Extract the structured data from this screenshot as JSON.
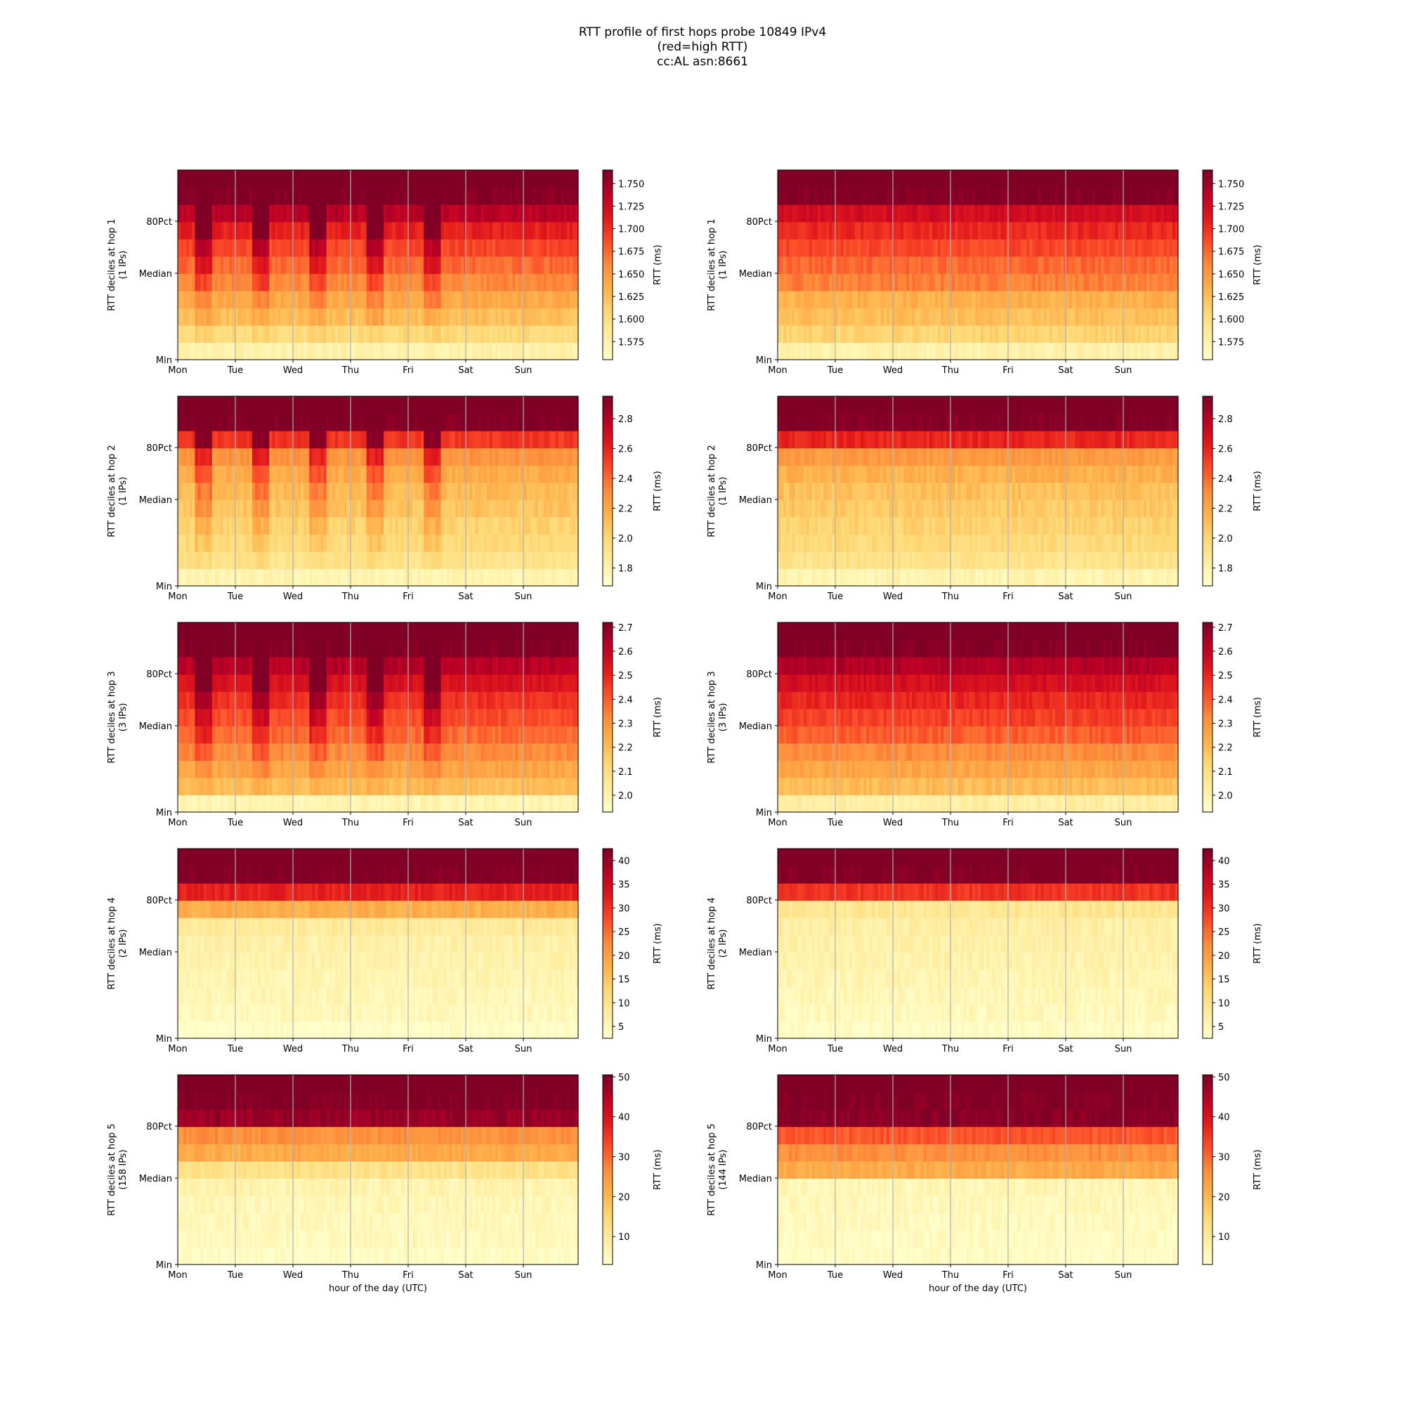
{
  "title_lines": [
    "RTT profile of first hops probe 10849 IPv4",
    "(red=high RTT)",
    "cc:AL asn:8661"
  ],
  "colorscale": {
    "name": "YlOrRd",
    "stops": [
      "#ffffcc",
      "#ffeda0",
      "#fed976",
      "#feb24c",
      "#fd8d3c",
      "#fc4e2a",
      "#e31a1c",
      "#bd0026",
      "#800026"
    ]
  },
  "chart_data": [
    {
      "type": "heatmap",
      "position": "row 1, left",
      "ylabel": [
        "RTT deciles at hop 1",
        "(1 IPs)"
      ],
      "xlabel": "",
      "x_ticks": [
        "Mon",
        "Tue",
        "Wed",
        "Thu",
        "Fri",
        "Sat",
        "Sun"
      ],
      "y_ticks": [
        "Min",
        "Median",
        "80Pct"
      ],
      "colorbar_label": "RTT (ms)",
      "colorbar_range": [
        1.555,
        1.765
      ],
      "colorbar_ticks": [
        "1.575",
        "1.600",
        "1.625",
        "1.650",
        "1.675",
        "1.700",
        "1.725",
        "1.750"
      ],
      "decile_rtt_ms": [
        1.575,
        1.605,
        1.625,
        1.64,
        1.66,
        1.675,
        1.69,
        1.71,
        1.74,
        1.765
      ],
      "daily_spikes": true,
      "grid": "vertical at day boundaries"
    },
    {
      "type": "heatmap",
      "position": "row 1, right",
      "ylabel": [
        "RTT deciles at hop 1",
        "(1 IPs)"
      ],
      "xlabel": "",
      "x_ticks": [
        "Mon",
        "Tue",
        "Wed",
        "Thu",
        "Fri",
        "Sat",
        "Sun"
      ],
      "y_ticks": [
        "Min",
        "Median",
        "80Pct"
      ],
      "colorbar_label": "RTT (ms)",
      "colorbar_range": [
        1.555,
        1.765
      ],
      "colorbar_ticks": [
        "1.575",
        "1.600",
        "1.625",
        "1.650",
        "1.675",
        "1.700",
        "1.725",
        "1.750"
      ],
      "decile_rtt_ms": [
        1.575,
        1.61,
        1.625,
        1.635,
        1.665,
        1.675,
        1.69,
        1.705,
        1.725,
        1.765
      ],
      "daily_spikes": false,
      "grid": "vertical at day boundaries"
    },
    {
      "type": "heatmap",
      "position": "row 2, left",
      "ylabel": [
        "RTT deciles at hop 2",
        "(1 IPs)"
      ],
      "xlabel": "",
      "x_ticks": [
        "Mon",
        "Tue",
        "Wed",
        "Thu",
        "Fri",
        "Sat",
        "Sun"
      ],
      "y_ticks": [
        "Min",
        "Median",
        "80Pct"
      ],
      "colorbar_label": "RTT (ms)",
      "colorbar_range": [
        1.68,
        2.95
      ],
      "colorbar_ticks": [
        "1.8",
        "2.0",
        "2.2",
        "2.4",
        "2.6",
        "2.8"
      ],
      "decile_rtt_ms": [
        1.78,
        1.92,
        1.98,
        2.02,
        2.08,
        2.12,
        2.18,
        2.28,
        2.55,
        2.95
      ],
      "daily_spikes": true,
      "grid": "vertical at day boundaries"
    },
    {
      "type": "heatmap",
      "position": "row 2, right",
      "ylabel": [
        "RTT deciles at hop 2",
        "(1 IPs)"
      ],
      "xlabel": "",
      "x_ticks": [
        "Mon",
        "Tue",
        "Wed",
        "Thu",
        "Fri",
        "Sat",
        "Sun"
      ],
      "y_ticks": [
        "Min",
        "Median",
        "80Pct"
      ],
      "colorbar_label": "RTT (ms)",
      "colorbar_range": [
        1.68,
        2.95
      ],
      "colorbar_ticks": [
        "1.8",
        "2.0",
        "2.2",
        "2.4",
        "2.6",
        "2.8"
      ],
      "decile_rtt_ms": [
        1.78,
        1.92,
        1.98,
        2.02,
        2.06,
        2.1,
        2.16,
        2.26,
        2.6,
        2.95
      ],
      "daily_spikes": false,
      "grid": "vertical at day boundaries"
    },
    {
      "type": "heatmap",
      "position": "row 3, left",
      "ylabel": [
        "RTT deciles at hop 3",
        "(3 IPs)"
      ],
      "xlabel": "",
      "x_ticks": [
        "Mon",
        "Tue",
        "Wed",
        "Thu",
        "Fri",
        "Sat",
        "Sun"
      ],
      "y_ticks": [
        "Min",
        "Median",
        "80Pct"
      ],
      "colorbar_label": "RTT (ms)",
      "colorbar_range": [
        1.93,
        2.72
      ],
      "colorbar_ticks": [
        "2.0",
        "2.1",
        "2.2",
        "2.3",
        "2.4",
        "2.5",
        "2.6",
        "2.7"
      ],
      "decile_rtt_ms": [
        1.99,
        2.2,
        2.26,
        2.32,
        2.38,
        2.43,
        2.48,
        2.55,
        2.63,
        2.72
      ],
      "daily_spikes": true,
      "grid": "vertical at day boundaries"
    },
    {
      "type": "heatmap",
      "position": "row 3, right",
      "ylabel": [
        "RTT deciles at hop 3",
        "(3 IPs)"
      ],
      "xlabel": "",
      "x_ticks": [
        "Mon",
        "Tue",
        "Wed",
        "Thu",
        "Fri",
        "Sat",
        "Sun"
      ],
      "y_ticks": [
        "Min",
        "Median",
        "80Pct"
      ],
      "colorbar_label": "RTT (ms)",
      "colorbar_range": [
        1.93,
        2.72
      ],
      "colorbar_ticks": [
        "2.0",
        "2.1",
        "2.2",
        "2.3",
        "2.4",
        "2.5",
        "2.6",
        "2.7"
      ],
      "decile_rtt_ms": [
        2.02,
        2.2,
        2.26,
        2.32,
        2.4,
        2.45,
        2.5,
        2.56,
        2.64,
        2.72
      ],
      "daily_spikes": false,
      "grid": "vertical at day boundaries"
    },
    {
      "type": "heatmap",
      "position": "row 4, left",
      "ylabel": [
        "RTT deciles at hop 4",
        "(2 IPs)"
      ],
      "xlabel": "",
      "x_ticks": [
        "Mon",
        "Tue",
        "Wed",
        "Thu",
        "Fri",
        "Sat",
        "Sun"
      ],
      "y_ticks": [
        "Min",
        "Median",
        "80Pct"
      ],
      "colorbar_label": "RTT (ms)",
      "colorbar_range": [
        2.5,
        42.5
      ],
      "colorbar_ticks": [
        "5",
        "10",
        "15",
        "20",
        "25",
        "30",
        "35",
        "40"
      ],
      "decile_rtt_ms": [
        3.2,
        4.5,
        5,
        5.5,
        6,
        6.5,
        8,
        18,
        32,
        42.5
      ],
      "daily_spikes": false,
      "grid": "vertical at day boundaries"
    },
    {
      "type": "heatmap",
      "position": "row 4, right",
      "ylabel": [
        "RTT deciles at hop 4",
        "(2 IPs)"
      ],
      "xlabel": "",
      "x_ticks": [
        "Mon",
        "Tue",
        "Wed",
        "Thu",
        "Fri",
        "Sat",
        "Sun"
      ],
      "y_ticks": [
        "Min",
        "Median",
        "80Pct"
      ],
      "colorbar_label": "RTT (ms)",
      "colorbar_range": [
        2.5,
        42.5
      ],
      "colorbar_ticks": [
        "5",
        "10",
        "15",
        "20",
        "25",
        "30",
        "35",
        "40"
      ],
      "decile_rtt_ms": [
        3.2,
        4.5,
        5,
        5.5,
        6,
        6.5,
        7,
        9,
        30,
        42.5
      ],
      "daily_spikes": false,
      "grid": "vertical at day boundaries"
    },
    {
      "type": "heatmap",
      "position": "row 5, left",
      "ylabel": [
        "RTT deciles at hop 5",
        "(158 IPs)"
      ],
      "xlabel": "hour of the day (UTC)",
      "x_ticks": [
        "Mon",
        "Tue",
        "Wed",
        "Thu",
        "Fri",
        "Sat",
        "Sun"
      ],
      "y_ticks": [
        "Min",
        "Median",
        "80Pct"
      ],
      "colorbar_label": "RTT (ms)",
      "colorbar_range": [
        3,
        50.5
      ],
      "colorbar_ticks": [
        "10",
        "20",
        "30",
        "40",
        "50"
      ],
      "decile_rtt_ms": [
        4,
        5,
        5.5,
        6,
        7,
        12,
        22,
        26,
        48,
        50.5
      ],
      "daily_spikes": false,
      "grid": "vertical at day boundaries"
    },
    {
      "type": "heatmap",
      "position": "row 5, right",
      "ylabel": [
        "RTT deciles at hop 5",
        "(144 IPs)"
      ],
      "xlabel": "hour of the day (UTC)",
      "x_ticks": [
        "Mon",
        "Tue",
        "Wed",
        "Thu",
        "Fri",
        "Sat",
        "Sun"
      ],
      "y_ticks": [
        "Min",
        "Median",
        "80Pct"
      ],
      "colorbar_label": "RTT (ms)",
      "colorbar_range": [
        3,
        50.5
      ],
      "colorbar_ticks": [
        "10",
        "20",
        "30",
        "40",
        "50"
      ],
      "decile_rtt_ms": [
        4,
        4.5,
        5,
        5.5,
        6,
        22,
        26,
        32,
        50,
        50.5
      ],
      "daily_spikes": false,
      "grid": "vertical at day boundaries"
    }
  ]
}
